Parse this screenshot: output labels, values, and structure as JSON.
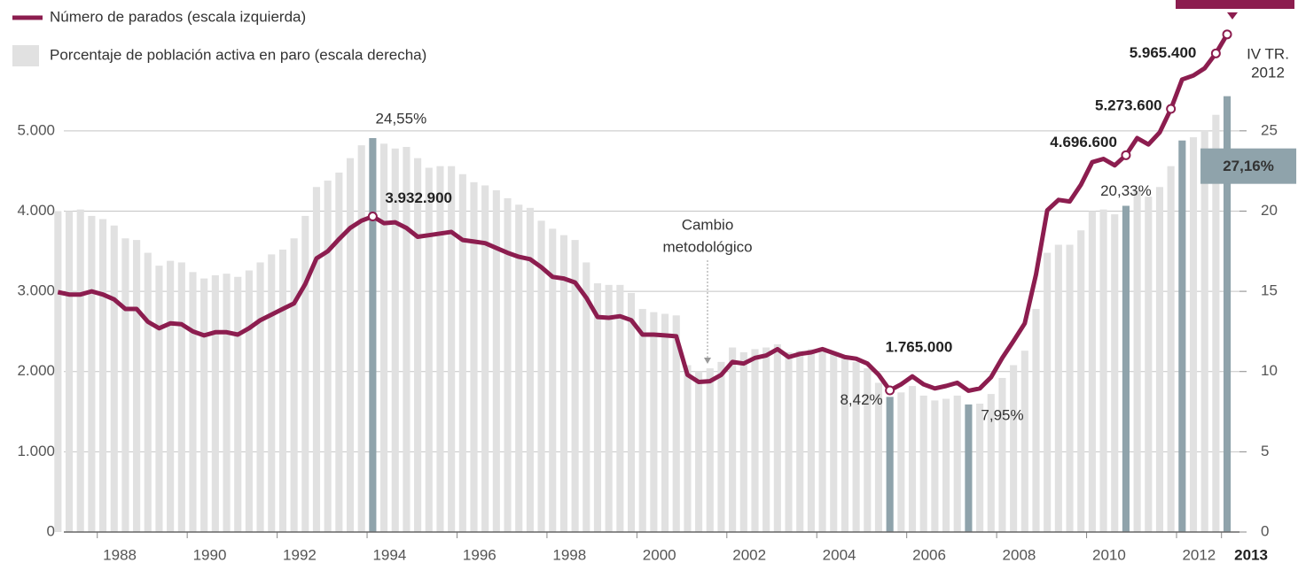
{
  "chart_data": {
    "type": "combo",
    "x": [
      1987.125,
      1987.375,
      1987.625,
      1987.875,
      1988.125,
      1988.375,
      1988.625,
      1988.875,
      1989.125,
      1989.375,
      1989.625,
      1989.875,
      1990.125,
      1990.375,
      1990.625,
      1990.875,
      1991.125,
      1991.375,
      1991.625,
      1991.875,
      1992.125,
      1992.375,
      1992.625,
      1992.875,
      1993.125,
      1993.375,
      1993.625,
      1993.875,
      1994.125,
      1994.375,
      1994.625,
      1994.875,
      1995.125,
      1995.375,
      1995.625,
      1995.875,
      1996.125,
      1996.375,
      1996.625,
      1996.875,
      1997.125,
      1997.375,
      1997.625,
      1997.875,
      1998.125,
      1998.375,
      1998.625,
      1998.875,
      1999.125,
      1999.375,
      1999.625,
      1999.875,
      2000.125,
      2000.375,
      2000.625,
      2000.875,
      2001.125,
      2001.375,
      2001.625,
      2001.875,
      2002.125,
      2002.375,
      2002.625,
      2002.875,
      2003.125,
      2003.375,
      2003.625,
      2003.875,
      2004.125,
      2004.375,
      2004.625,
      2004.875,
      2005.125,
      2005.375,
      2005.625,
      2005.875,
      2006.125,
      2006.375,
      2006.625,
      2006.875,
      2007.125,
      2007.375,
      2007.625,
      2007.875,
      2008.125,
      2008.375,
      2008.625,
      2008.875,
      2009.125,
      2009.375,
      2009.625,
      2009.875,
      2010.125,
      2010.375,
      2010.625,
      2010.875,
      2011.125,
      2011.375,
      2011.625,
      2011.875,
      2012.125,
      2012.375,
      2012.625,
      2012.875,
      2013.125
    ],
    "xlim": [
      1987,
      2013.4
    ],
    "xticks": [
      1988,
      1990,
      1992,
      1994,
      1996,
      1998,
      2000,
      2002,
      2004,
      2006,
      2008,
      2010,
      2012,
      2013
    ],
    "ylim": [
      0,
      6300
    ],
    "yticks": [
      0,
      {
        "value": 1000,
        "label": "1.000"
      },
      {
        "value": 2000,
        "label": "2.000"
      },
      {
        "value": 3000,
        "label": "3.000"
      },
      {
        "value": 4000,
        "label": "4.000"
      },
      {
        "value": 5000,
        "label": "5.000"
      }
    ],
    "y2lim": [
      0,
      31.5
    ],
    "y2ticks": [
      0,
      5,
      10,
      15,
      20,
      25
    ],
    "grid": true,
    "series": [
      {
        "name": "Porcentaje de población activa en paro (escala derecha)",
        "type": "bar",
        "axis": "y2",
        "color": "#e1e1e1",
        "values": [
          20.0,
          20.0,
          20.1,
          19.7,
          19.5,
          19.1,
          18.3,
          18.2,
          17.4,
          16.6,
          16.9,
          16.8,
          16.2,
          15.8,
          16.0,
          16.1,
          15.9,
          16.3,
          16.8,
          17.3,
          17.6,
          18.3,
          19.7,
          21.5,
          21.9,
          22.4,
          23.3,
          24.1,
          24.55,
          24.2,
          23.9,
          24.0,
          23.3,
          22.7,
          22.8,
          22.8,
          22.3,
          21.8,
          21.6,
          21.3,
          20.8,
          20.4,
          20.2,
          19.4,
          18.9,
          18.5,
          18.2,
          16.8,
          15.5,
          15.4,
          15.4,
          14.9,
          13.9,
          13.7,
          13.6,
          13.5,
          10.4,
          10.0,
          10.2,
          10.6,
          11.5,
          11.2,
          11.4,
          11.5,
          11.7,
          11.2,
          11.3,
          11.4,
          11.5,
          11.1,
          10.8,
          10.6,
          10.2,
          9.3,
          8.42,
          8.7,
          9.1,
          8.5,
          8.2,
          8.3,
          8.5,
          7.95,
          8.0,
          8.6,
          9.6,
          10.4,
          11.3,
          13.9,
          17.4,
          17.9,
          17.9,
          18.8,
          20.0,
          20.1,
          19.8,
          20.33,
          21.3,
          20.9,
          21.5,
          22.8,
          24.4,
          24.6,
          25.0,
          26.0,
          27.16
        ],
        "colors": [
          "#e1e1e1",
          "#e1e1e1",
          "#e1e1e1",
          "#e1e1e1",
          "#e1e1e1",
          "#e1e1e1",
          "#e1e1e1",
          "#e1e1e1",
          "#e1e1e1",
          "#e1e1e1",
          "#e1e1e1",
          "#e1e1e1",
          "#e1e1e1",
          "#e1e1e1",
          "#e1e1e1",
          "#e1e1e1",
          "#e1e1e1",
          "#e1e1e1",
          "#e1e1e1",
          "#e1e1e1",
          "#e1e1e1",
          "#e1e1e1",
          "#e1e1e1",
          "#e1e1e1",
          "#e1e1e1",
          "#e1e1e1",
          "#e1e1e1",
          "#e1e1e1",
          "#8fa3ab",
          "#e1e1e1",
          "#e1e1e1",
          "#e1e1e1",
          "#e1e1e1",
          "#e1e1e1",
          "#e1e1e1",
          "#e1e1e1",
          "#e1e1e1",
          "#e1e1e1",
          "#e1e1e1",
          "#e1e1e1",
          "#e1e1e1",
          "#e1e1e1",
          "#e1e1e1",
          "#e1e1e1",
          "#e1e1e1",
          "#e1e1e1",
          "#e1e1e1",
          "#e1e1e1",
          "#e1e1e1",
          "#e1e1e1",
          "#e1e1e1",
          "#e1e1e1",
          "#e1e1e1",
          "#e1e1e1",
          "#e1e1e1",
          "#e1e1e1",
          "#e1e1e1",
          "#e1e1e1",
          "#e1e1e1",
          "#e1e1e1",
          "#e1e1e1",
          "#e1e1e1",
          "#e1e1e1",
          "#e1e1e1",
          "#e1e1e1",
          "#e1e1e1",
          "#e1e1e1",
          "#e1e1e1",
          "#e1e1e1",
          "#e1e1e1",
          "#e1e1e1",
          "#e1e1e1",
          "#e1e1e1",
          "#e1e1e1",
          "#8fa3ab",
          "#e1e1e1",
          "#e1e1e1",
          "#e1e1e1",
          "#e1e1e1",
          "#e1e1e1",
          "#e1e1e1",
          "#8fa3ab",
          "#e1e1e1",
          "#e1e1e1",
          "#e1e1e1",
          "#e1e1e1",
          "#e1e1e1",
          "#e1e1e1",
          "#e1e1e1",
          "#e1e1e1",
          "#e1e1e1",
          "#e1e1e1",
          "#e1e1e1",
          "#e1e1e1",
          "#e1e1e1",
          "#8fa3ab",
          "#e1e1e1",
          "#e1e1e1",
          "#e1e1e1",
          "#e1e1e1",
          "#8fa3ab",
          "#e1e1e1",
          "#e1e1e1",
          "#e1e1e1",
          "#8fa3ab"
        ],
        "value_labels": [
          null,
          null,
          null,
          null,
          null,
          null,
          null,
          null,
          null,
          null,
          null,
          null,
          null,
          null,
          null,
          null,
          null,
          null,
          null,
          null,
          null,
          null,
          null,
          null,
          null,
          null,
          null,
          null,
          "24,55%",
          null,
          null,
          null,
          null,
          null,
          null,
          null,
          null,
          null,
          null,
          null,
          null,
          null,
          null,
          null,
          null,
          null,
          null,
          null,
          null,
          null,
          null,
          null,
          null,
          null,
          null,
          null,
          null,
          null,
          null,
          null,
          null,
          null,
          null,
          null,
          null,
          null,
          null,
          null,
          null,
          null,
          null,
          null,
          null,
          null,
          "8,42%",
          null,
          null,
          null,
          null,
          null,
          null,
          "7,95%",
          null,
          null,
          null,
          null,
          null,
          null,
          null,
          null,
          null,
          null,
          null,
          null,
          null,
          "20,33%",
          null,
          null,
          null,
          null,
          null,
          null,
          null,
          null,
          "27,16%"
        ]
      },
      {
        "name": "Número de parados (escala izquierda)",
        "type": "line",
        "axis": "y",
        "color": "#8c1d4f",
        "values": [
          2990,
          2960,
          2960,
          3000,
          2960,
          2900,
          2780,
          2780,
          2620,
          2540,
          2600,
          2590,
          2500,
          2450,
          2490,
          2490,
          2460,
          2540,
          2640,
          2710,
          2780,
          2850,
          3090,
          3410,
          3500,
          3650,
          3790,
          3880,
          3932.9,
          3850,
          3860,
          3790,
          3680,
          3700,
          3720,
          3740,
          3640,
          3620,
          3600,
          3540,
          3480,
          3430,
          3400,
          3300,
          3180,
          3160,
          3110,
          2920,
          2680,
          2670,
          2690,
          2640,
          2460,
          2460,
          2450,
          2440,
          1960,
          1870,
          1880,
          1960,
          2120,
          2100,
          2170,
          2200,
          2280,
          2180,
          2220,
          2240,
          2280,
          2230,
          2180,
          2160,
          2100,
          1960,
          1765,
          1840,
          1940,
          1840,
          1790,
          1820,
          1860,
          1761,
          1790,
          1930,
          2170,
          2380,
          2600,
          3210,
          4010,
          4140,
          4120,
          4330,
          4610,
          4650,
          4570,
          4696.6,
          4910,
          4830,
          4980,
          5273.6,
          5640,
          5690,
          5780,
          5965.4,
          6202.7
        ],
        "value_labels": [
          null,
          null,
          null,
          null,
          null,
          null,
          null,
          null,
          null,
          null,
          null,
          null,
          null,
          null,
          null,
          null,
          null,
          null,
          null,
          null,
          null,
          null,
          null,
          null,
          null,
          null,
          null,
          null,
          "3.932.900",
          null,
          null,
          null,
          null,
          null,
          null,
          null,
          null,
          null,
          null,
          null,
          null,
          null,
          null,
          null,
          null,
          null,
          null,
          null,
          null,
          null,
          null,
          null,
          null,
          null,
          null,
          null,
          null,
          null,
          null,
          null,
          null,
          null,
          null,
          null,
          null,
          null,
          null,
          null,
          null,
          null,
          null,
          null,
          null,
          null,
          "1.765.000",
          null,
          null,
          null,
          null,
          null,
          null,
          null,
          null,
          null,
          null,
          null,
          null,
          null,
          null,
          null,
          null,
          null,
          null,
          null,
          null,
          "4.696.600",
          null,
          null,
          null,
          "5.273.600",
          null,
          null,
          null,
          "5.965.400",
          null
        ]
      }
    ],
    "annotations": [
      {
        "lines": [
          "Cambio",
          "metodológico"
        ]
      },
      {
        "lines": [
          "IV TR.",
          "2012"
        ]
      }
    ]
  }
}
